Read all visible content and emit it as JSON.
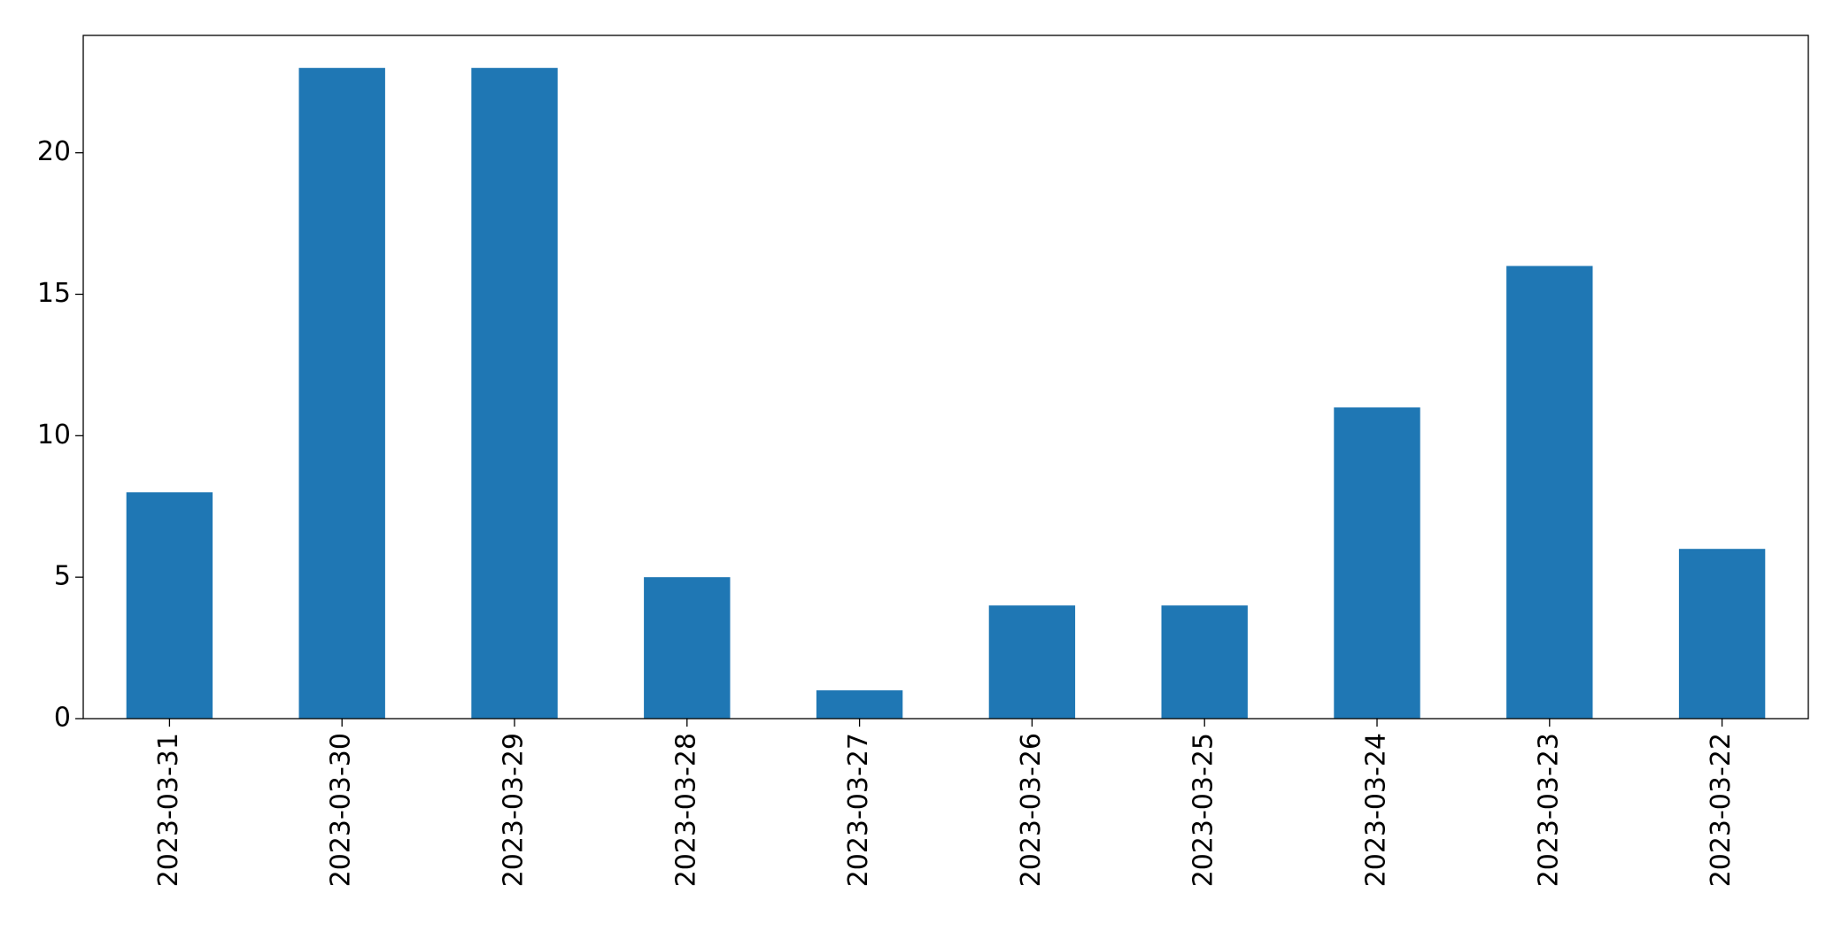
{
  "chart_data": {
    "type": "bar",
    "categories": [
      "2023-03-31",
      "2023-03-30",
      "2023-03-29",
      "2023-03-28",
      "2023-03-27",
      "2023-03-26",
      "2023-03-25",
      "2023-03-24",
      "2023-03-23",
      "2023-03-22"
    ],
    "values": [
      8,
      23,
      23,
      5,
      1,
      4,
      4,
      11,
      16,
      6
    ],
    "color": "#1f77b4",
    "ylim": [
      0,
      24.15
    ],
    "yticks": [
      0,
      5,
      10,
      15,
      20
    ],
    "grid": false
  }
}
